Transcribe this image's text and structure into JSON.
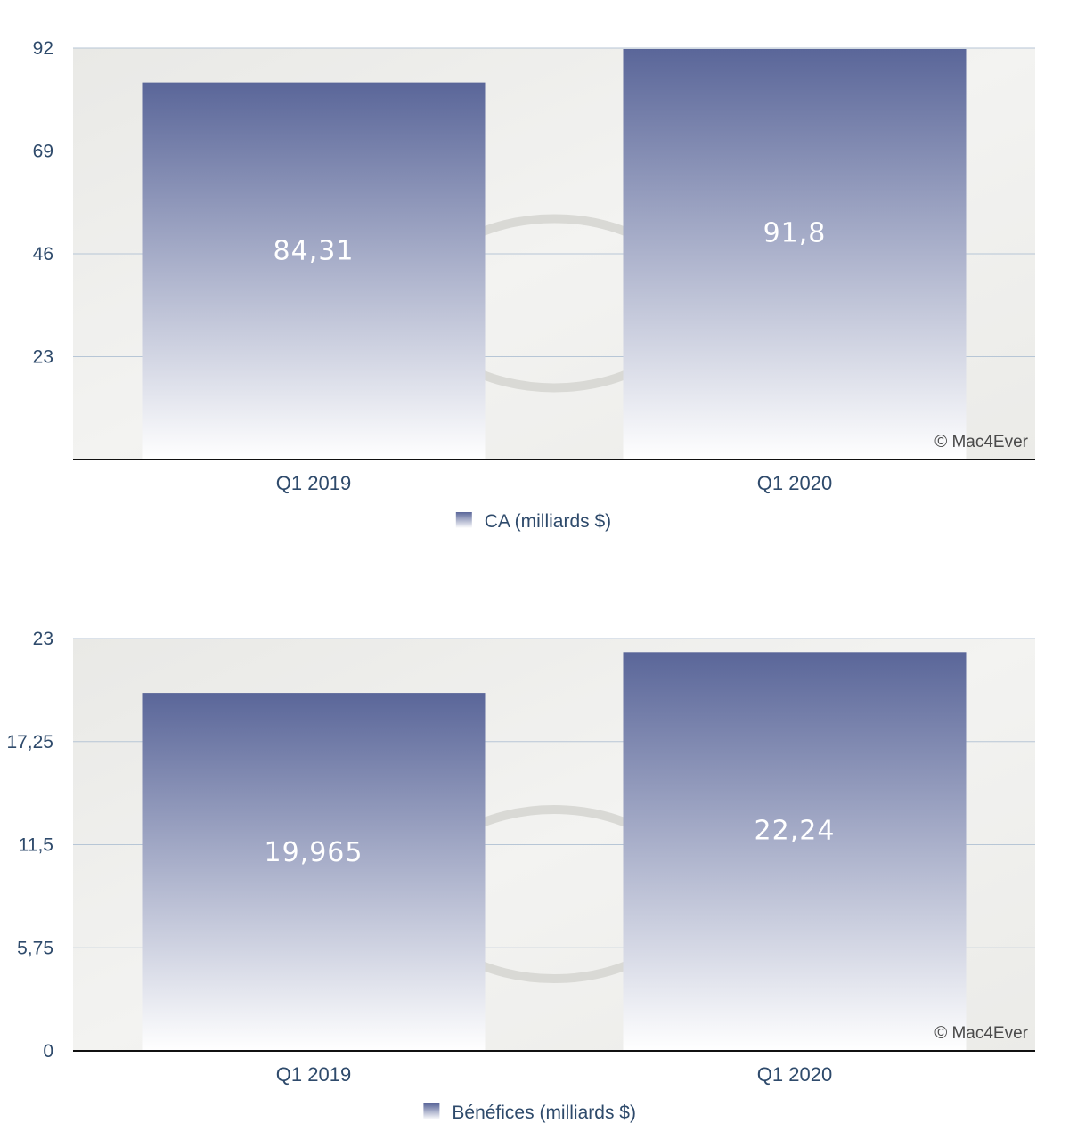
{
  "chart_data": [
    {
      "type": "bar",
      "categories": [
        "Q1 2019",
        "Q1 2020"
      ],
      "series": [
        {
          "name": "CA (milliards $)",
          "values": [
            84.31,
            91.8
          ]
        }
      ],
      "data_labels": [
        "84,31",
        "91,8"
      ],
      "yticks": [
        "23",
        "46",
        "69",
        "92"
      ],
      "ylim": [
        0,
        92
      ],
      "grid": true,
      "legend": "bottom",
      "watermark": "© Mac4Ever",
      "colors": {
        "bar_top": "#5a6699",
        "bar_bottom": "#ffffff",
        "text": "#2e4a6b"
      }
    },
    {
      "type": "bar",
      "categories": [
        "Q1 2019",
        "Q1 2020"
      ],
      "series": [
        {
          "name": "Bénéfices (milliards $)",
          "values": [
            19.965,
            22.24
          ]
        }
      ],
      "data_labels": [
        "19,965",
        "22,24"
      ],
      "yticks": [
        "0",
        "5,75",
        "11,5",
        "17,25",
        "23"
      ],
      "ylim": [
        0,
        23
      ],
      "grid": true,
      "legend": "bottom",
      "watermark": "© Mac4Ever",
      "colors": {
        "bar_top": "#5a6699",
        "bar_bottom": "#ffffff",
        "text": "#2e4a6b"
      }
    }
  ]
}
